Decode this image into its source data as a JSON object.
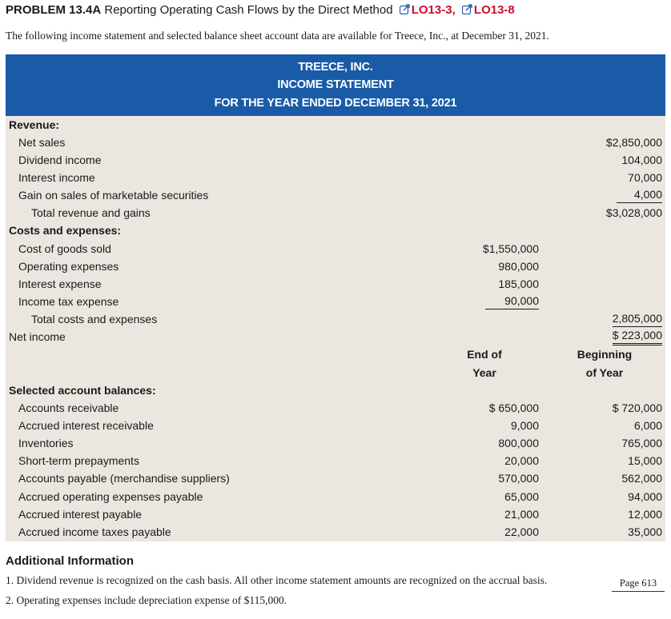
{
  "header": {
    "problem_label": "PROBLEM 13.4A",
    "problem_title": "Reporting Operating Cash Flows by the Direct Method",
    "lo_links": [
      "LO13-3,",
      "LO13-8"
    ]
  },
  "intro_text": "The following income statement and selected balance sheet account data are available for Treece, Inc., at December 31, 2021.",
  "statement": {
    "company": "TREECE, INC.",
    "title": "INCOME STATEMENT",
    "period": "FOR THE YEAR ENDED DECEMBER 31, 2021"
  },
  "revenue": {
    "heading": "Revenue:",
    "items": [
      {
        "label": "Net sales",
        "amount": "$2,850,000"
      },
      {
        "label": "Dividend income",
        "amount": "104,000"
      },
      {
        "label": "Interest income",
        "amount": "70,000"
      },
      {
        "label": "Gain on sales of marketable securities",
        "amount": "4,000"
      }
    ],
    "total_label": "Total revenue and gains",
    "total_amount": "$3,028,000"
  },
  "costs": {
    "heading": "Costs and expenses:",
    "items": [
      {
        "label": "Cost of goods sold",
        "amount": "$1,550,000"
      },
      {
        "label": "Operating expenses",
        "amount": "980,000"
      },
      {
        "label": "Interest expense",
        "amount": "185,000"
      },
      {
        "label": "Income tax expense",
        "amount": "90,000"
      }
    ],
    "total_label": "Total costs and expenses",
    "total_amount": "2,805,000"
  },
  "net_income": {
    "label": "Net income",
    "amount": "$ 223,000"
  },
  "balances": {
    "col_end": [
      "End of",
      "Year"
    ],
    "col_begin": [
      "Beginning",
      "of Year"
    ],
    "heading": "Selected account balances:",
    "items": [
      {
        "label": "Accounts receivable",
        "end": "$ 650,000",
        "begin": "$ 720,000"
      },
      {
        "label": "Accrued interest receivable",
        "end": "9,000",
        "begin": "6,000"
      },
      {
        "label": "Inventories",
        "end": "800,000",
        "begin": "765,000"
      },
      {
        "label": "Short-term prepayments",
        "end": "20,000",
        "begin": "15,000"
      },
      {
        "label": "Accounts payable (merchandise suppliers)",
        "end": "570,000",
        "begin": "562,000"
      },
      {
        "label": "Accrued operating expenses payable",
        "end": "65,000",
        "begin": "94,000"
      },
      {
        "label": "Accrued interest payable",
        "end": "21,000",
        "begin": "12,000"
      },
      {
        "label": "Accrued income taxes payable",
        "end": "22,000",
        "begin": "35,000"
      }
    ]
  },
  "additional": {
    "heading": "Additional Information",
    "notes": [
      "1. Dividend revenue is recognized on the cash basis. All other income statement amounts are recognized on the accrual basis.",
      "2. Operating expenses include depreciation expense of $115,000."
    ],
    "page_ref": "Page 613"
  }
}
